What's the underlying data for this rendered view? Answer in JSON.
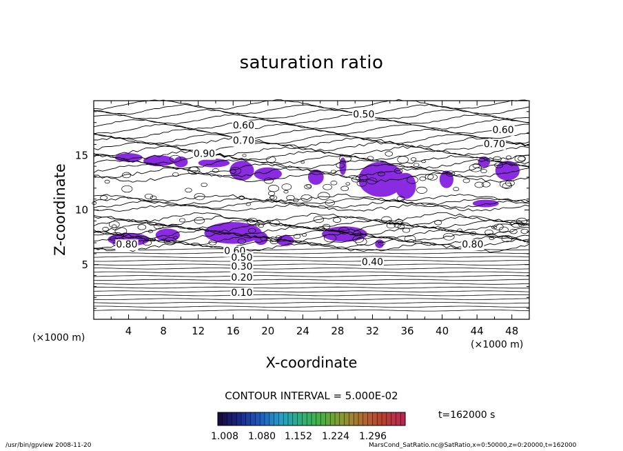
{
  "chart_data": {
    "type": "contour",
    "title": "saturation ratio",
    "xlabel": "X-coordinate",
    "ylabel": "Z-coordinate",
    "x_unit": "(×1000 m)",
    "y_unit": "(×1000 m)",
    "xlim": [
      0,
      50
    ],
    "ylim": [
      0,
      20
    ],
    "x_ticks": [
      4,
      8,
      12,
      16,
      20,
      24,
      28,
      32,
      36,
      40,
      44,
      48
    ],
    "y_ticks": [
      5,
      10,
      15
    ],
    "contour_labels": [
      {
        "text": "0.50",
        "x": 31.0,
        "y": 18.7
      },
      {
        "text": "0.60",
        "x": 17.2,
        "y": 17.7
      },
      {
        "text": "0.60",
        "x": 47.0,
        "y": 17.3
      },
      {
        "text": "0.70",
        "x": 17.2,
        "y": 16.3
      },
      {
        "text": "0.70",
        "x": 46.0,
        "y": 16.0
      },
      {
        "text": "0.90",
        "x": 12.7,
        "y": 15.1
      },
      {
        "text": "0.80",
        "x": 3.8,
        "y": 6.8
      },
      {
        "text": "0.60",
        "x": 16.2,
        "y": 6.2
      },
      {
        "text": "0.50",
        "x": 17.0,
        "y": 5.6
      },
      {
        "text": "0.40",
        "x": 32.0,
        "y": 5.2
      },
      {
        "text": "0.30",
        "x": 17.0,
        "y": 4.8
      },
      {
        "text": "0.20",
        "x": 17.0,
        "y": 3.8
      },
      {
        "text": "0.10",
        "x": 17.0,
        "y": 2.4
      },
      {
        "text": "0.80",
        "x": 43.5,
        "y": 6.8
      }
    ],
    "colorbar": {
      "ticks": [
        "1.008",
        "1.080",
        "1.152",
        "1.224",
        "1.296"
      ],
      "colors": [
        "#1a0a40",
        "#1b2a8a",
        "#1f5ec0",
        "#22a0c8",
        "#2cb07a",
        "#4ab040",
        "#8a9a30",
        "#b06a30",
        "#b84030",
        "#b82850"
      ]
    },
    "fill_color": "#8a2be2",
    "contour_interval": "CONTOUR INTERVAL = 5.000E-02",
    "time_label": "t=162000 s"
  },
  "footer": {
    "left": "/usr/bin/gpview   2008-11-20",
    "right": "MarsCond_SatRatio.nc@SatRatio,x=0:50000,z=0:20000,t=162000"
  }
}
